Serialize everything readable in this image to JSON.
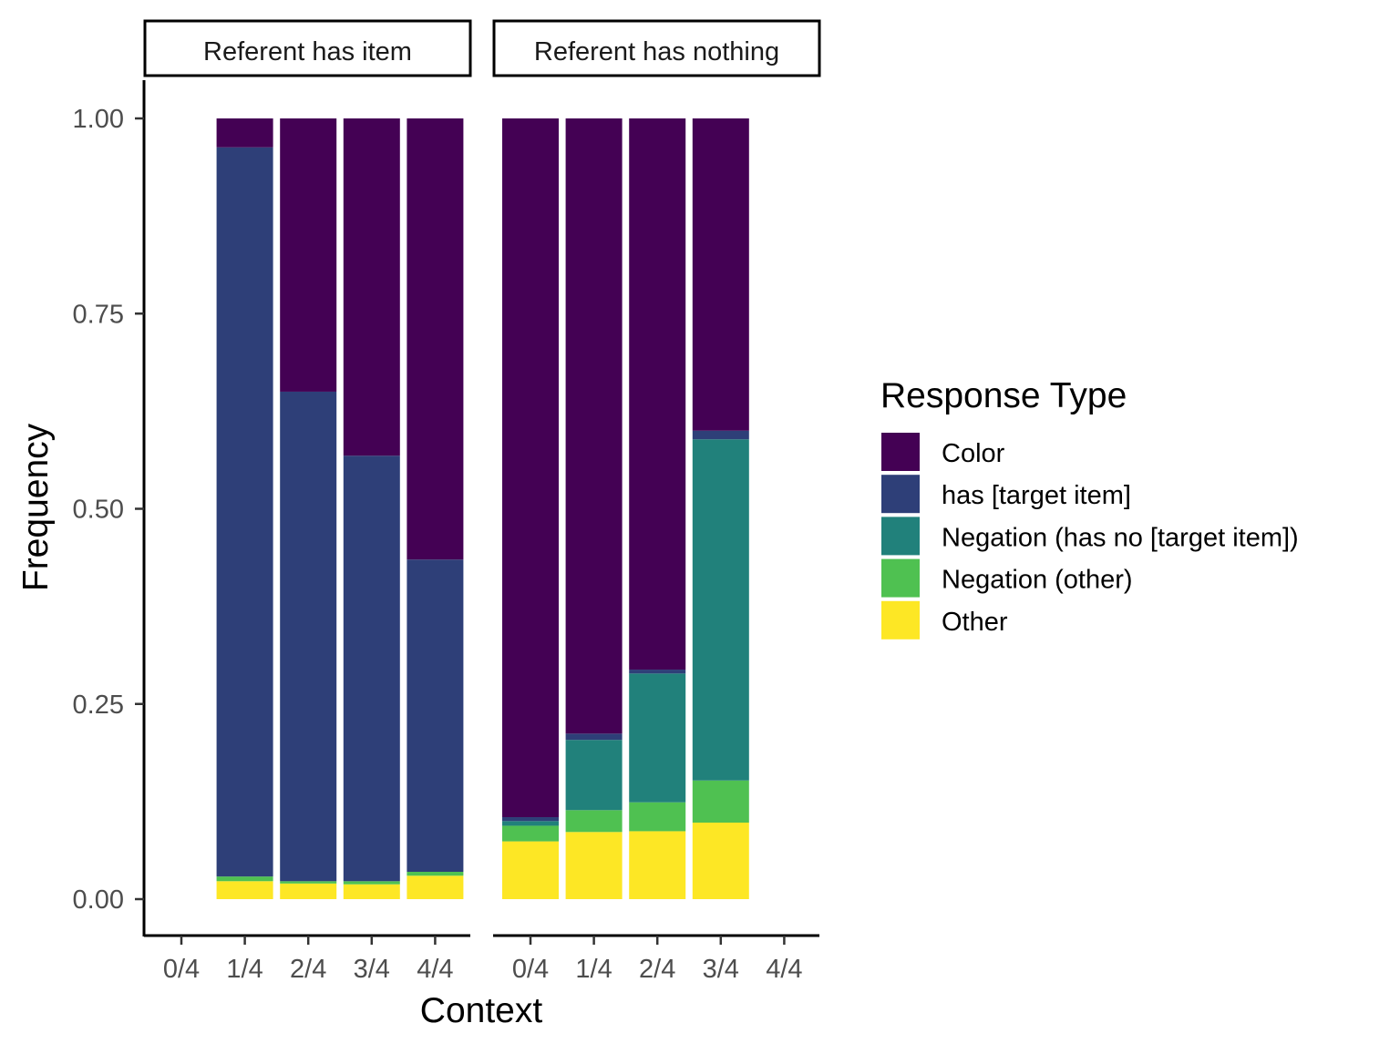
{
  "chart_data": {
    "type": "bar",
    "stacked": true,
    "xlabel": "Context",
    "ylabel": "Frequency",
    "ylim": [
      0,
      1
    ],
    "yticks": [
      "0.00",
      "0.25",
      "0.50",
      "0.75",
      "1.00"
    ],
    "ytick_values": [
      0,
      0.25,
      0.5,
      0.75,
      1.0
    ],
    "categories": [
      "0/4",
      "1/4",
      "2/4",
      "3/4",
      "4/4"
    ],
    "legend": {
      "title": "Response Type",
      "position": "right",
      "entries": [
        {
          "name": "Color",
          "color": "#440154"
        },
        {
          "name": "has [target item]",
          "color": "#2e3f78"
        },
        {
          "name": "Negation (has no [target item])",
          "color": "#21817b"
        },
        {
          "name": "Negation (other)",
          "color": "#4fc151"
        },
        {
          "name": "Other",
          "color": "#fde725"
        }
      ]
    },
    "stack_order_bottom_to_top": [
      "Other",
      "Negation (other)",
      "Negation (has no [target item])",
      "has [target item]",
      "Color"
    ],
    "panels": [
      {
        "title": "Referent has item",
        "bars": [
          {
            "category": "1/4",
            "values": {
              "Other": 0.023,
              "Negation (other)": 0.006,
              "Negation (has no [target item])": 0.0,
              "has [target item]": 0.934,
              "Color": 0.037
            }
          },
          {
            "category": "2/4",
            "values": {
              "Other": 0.02,
              "Negation (other)": 0.003,
              "Negation (has no [target item])": 0.0,
              "has [target item]": 0.627,
              "Color": 0.35
            }
          },
          {
            "category": "3/4",
            "values": {
              "Other": 0.019,
              "Negation (other)": 0.004,
              "Negation (has no [target item])": 0.0,
              "has [target item]": 0.545,
              "Color": 0.432
            }
          },
          {
            "category": "4/4",
            "values": {
              "Other": 0.03,
              "Negation (other)": 0.005,
              "Negation (has no [target item])": 0.0,
              "has [target item]": 0.4,
              "Color": 0.565
            }
          }
        ]
      },
      {
        "title": "Referent has nothing",
        "bars": [
          {
            "category": "0/4",
            "values": {
              "Other": 0.074,
              "Negation (other)": 0.02,
              "Negation (has no [target item])": 0.006,
              "has [target item]": 0.005,
              "Color": 0.895
            }
          },
          {
            "category": "1/4",
            "values": {
              "Other": 0.086,
              "Negation (other)": 0.028,
              "Negation (has no [target item])": 0.09,
              "has [target item]": 0.008,
              "Color": 0.788
            }
          },
          {
            "category": "2/4",
            "values": {
              "Other": 0.087,
              "Negation (other)": 0.037,
              "Negation (has no [target item])": 0.165,
              "has [target item]": 0.005,
              "Color": 0.706
            }
          },
          {
            "category": "3/4",
            "values": {
              "Other": 0.098,
              "Negation (other)": 0.054,
              "Negation (has no [target item])": 0.437,
              "has [target item]": 0.011,
              "Color": 0.4
            }
          }
        ]
      }
    ]
  }
}
